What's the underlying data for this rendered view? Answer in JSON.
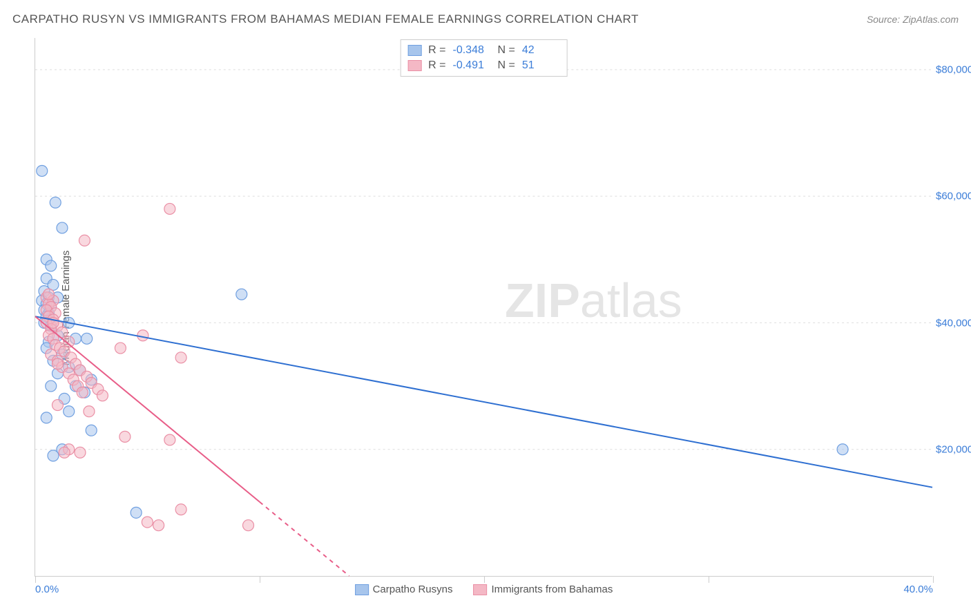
{
  "title": "CARPATHO RUSYN VS IMMIGRANTS FROM BAHAMAS MEDIAN FEMALE EARNINGS CORRELATION CHART",
  "source": "Source: ZipAtlas.com",
  "watermark_zip": "ZIP",
  "watermark_atlas": "atlas",
  "y_axis_title": "Median Female Earnings",
  "chart": {
    "type": "scatter",
    "xlim": [
      0,
      40
    ],
    "ylim": [
      0,
      85000
    ],
    "background_color": "#ffffff",
    "grid_color": "#dddddd",
    "axis_color": "#cccccc",
    "tick_label_color": "#3b7dd8",
    "y_ticks": [
      20000,
      40000,
      60000,
      80000
    ],
    "y_tick_labels": [
      "$20,000",
      "$40,000",
      "$60,000",
      "$80,000"
    ],
    "x_ticks": [
      0,
      10,
      20,
      30,
      40
    ],
    "x_tick_labels_ends": {
      "start": "0.0%",
      "end": "40.0%"
    },
    "marker_radius": 8,
    "marker_opacity": 0.55,
    "line_width": 2
  },
  "series": [
    {
      "name": "Carpatho Rusyns",
      "color_fill": "#a7c5ec",
      "color_stroke": "#6f9fe0",
      "line_color": "#2e6fd1",
      "R": "-0.348",
      "N": "42",
      "points": [
        [
          0.3,
          64000
        ],
        [
          0.9,
          59000
        ],
        [
          1.2,
          55000
        ],
        [
          0.5,
          50000
        ],
        [
          0.7,
          49000
        ],
        [
          0.5,
          47000
        ],
        [
          0.8,
          46000
        ],
        [
          0.4,
          45000
        ],
        [
          0.6,
          44000
        ],
        [
          9.2,
          44500
        ],
        [
          0.3,
          43500
        ],
        [
          0.5,
          43000
        ],
        [
          0.7,
          42500
        ],
        [
          0.4,
          42000
        ],
        [
          0.6,
          41500
        ],
        [
          0.5,
          41000
        ],
        [
          1.5,
          40000
        ],
        [
          0.4,
          40000
        ],
        [
          0.7,
          39500
        ],
        [
          1.0,
          38000
        ],
        [
          1.8,
          37500
        ],
        [
          0.6,
          37000
        ],
        [
          2.3,
          37500
        ],
        [
          0.5,
          36000
        ],
        [
          1.2,
          35000
        ],
        [
          0.8,
          34000
        ],
        [
          1.5,
          33000
        ],
        [
          2.0,
          32500
        ],
        [
          1.0,
          32000
        ],
        [
          2.5,
          31000
        ],
        [
          0.7,
          30000
        ],
        [
          1.8,
          30000
        ],
        [
          2.2,
          29000
        ],
        [
          1.3,
          28000
        ],
        [
          1.5,
          26000
        ],
        [
          0.5,
          25000
        ],
        [
          2.5,
          23000
        ],
        [
          36.0,
          20000
        ],
        [
          1.2,
          20000
        ],
        [
          4.5,
          10000
        ],
        [
          0.8,
          19000
        ],
        [
          1.0,
          44000
        ]
      ],
      "trend": {
        "x1": 0,
        "y1": 41000,
        "x2": 40,
        "y2": 14000,
        "dash_from_x": 40
      }
    },
    {
      "name": "Immigrants from Bahamas",
      "color_fill": "#f4b8c5",
      "color_stroke": "#ea8fa5",
      "line_color": "#e85d88",
      "R": "-0.491",
      "N": "51",
      "points": [
        [
          6.0,
          58000
        ],
        [
          2.2,
          53000
        ],
        [
          0.5,
          44000
        ],
        [
          0.8,
          43500
        ],
        [
          0.6,
          43000
        ],
        [
          0.7,
          42500
        ],
        [
          0.5,
          42000
        ],
        [
          0.9,
          41500
        ],
        [
          0.6,
          41000
        ],
        [
          0.8,
          40500
        ],
        [
          0.5,
          40000
        ],
        [
          1.0,
          39500
        ],
        [
          0.7,
          39000
        ],
        [
          1.2,
          38500
        ],
        [
          0.6,
          38000
        ],
        [
          4.8,
          38000
        ],
        [
          0.8,
          37500
        ],
        [
          1.5,
          37000
        ],
        [
          0.9,
          36500
        ],
        [
          1.1,
          36000
        ],
        [
          3.8,
          36000
        ],
        [
          1.3,
          35500
        ],
        [
          0.7,
          35000
        ],
        [
          1.6,
          34500
        ],
        [
          6.5,
          34500
        ],
        [
          1.0,
          34000
        ],
        [
          1.8,
          33500
        ],
        [
          1.2,
          33000
        ],
        [
          2.0,
          32500
        ],
        [
          1.5,
          32000
        ],
        [
          2.3,
          31500
        ],
        [
          1.7,
          31000
        ],
        [
          2.5,
          30500
        ],
        [
          1.9,
          30000
        ],
        [
          2.8,
          29500
        ],
        [
          2.1,
          29000
        ],
        [
          3.0,
          28500
        ],
        [
          1.0,
          27000
        ],
        [
          2.4,
          26000
        ],
        [
          4.0,
          22000
        ],
        [
          1.5,
          20000
        ],
        [
          6.0,
          21500
        ],
        [
          6.5,
          10500
        ],
        [
          5.0,
          8500
        ],
        [
          5.5,
          8000
        ],
        [
          9.5,
          8000
        ],
        [
          1.3,
          19500
        ],
        [
          2.0,
          19500
        ],
        [
          0.6,
          44500
        ],
        [
          0.8,
          40000
        ],
        [
          1.0,
          33500
        ]
      ],
      "trend": {
        "x1": 0,
        "y1": 41000,
        "x2": 14,
        "y2": 0,
        "dash_from_x": 10
      }
    }
  ],
  "stats_labels": {
    "R": "R =",
    "N": "N ="
  },
  "legend": [
    {
      "label": "Carpatho Rusyns",
      "fill": "#a7c5ec",
      "stroke": "#6f9fe0"
    },
    {
      "label": "Immigrants from Bahamas",
      "fill": "#f4b8c5",
      "stroke": "#ea8fa5"
    }
  ]
}
